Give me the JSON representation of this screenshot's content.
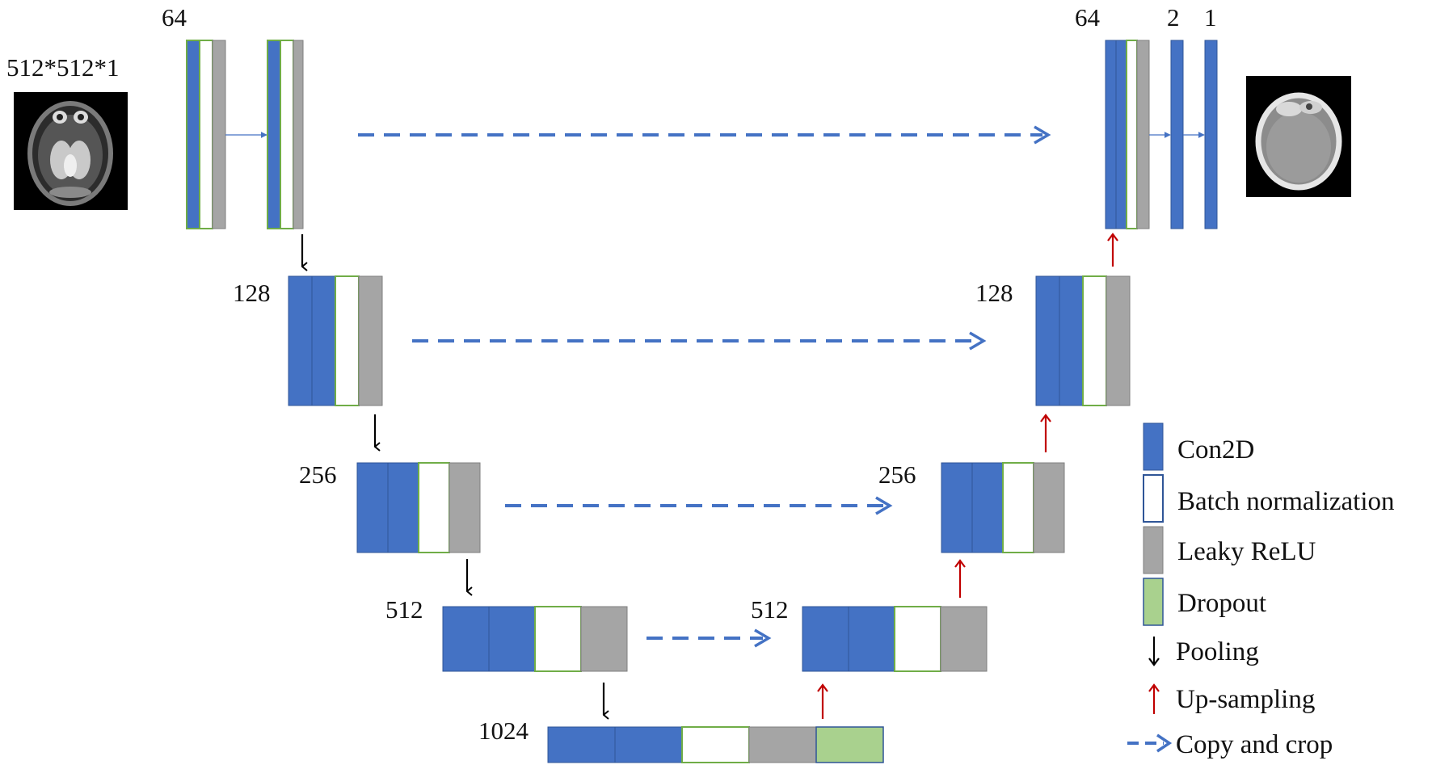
{
  "input": {
    "label": "512*512*1",
    "image": "brain-mri-slice"
  },
  "output": {
    "image": "brain-ct-slice"
  },
  "channel_labels": {
    "enc64": "64",
    "enc128": "128",
    "enc256": "256",
    "enc512": "512",
    "bottleneck": "1024",
    "dec512": "512",
    "dec256": "256",
    "dec128": "128",
    "dec64": "64",
    "final2": "2",
    "final1": "1"
  },
  "legend": {
    "items": [
      {
        "key": "con2d",
        "label": "Con2D",
        "color": "#4472c4"
      },
      {
        "key": "bn",
        "label": "Batch normalization",
        "color": "#ffffff"
      },
      {
        "key": "lrelu",
        "label": "Leaky ReLU",
        "color": "#a5a5a5"
      },
      {
        "key": "dropout",
        "label": "Dropout",
        "color": "#a9d18e"
      }
    ],
    "arrows": [
      {
        "key": "pooling",
        "label": "Pooling",
        "color": "#000000"
      },
      {
        "key": "upsampling",
        "label": "Up-sampling",
        "color": "#c00000"
      },
      {
        "key": "copy",
        "label": "Copy and crop",
        "color": "#4472c4"
      }
    ]
  },
  "colors": {
    "conv": "#4472c4",
    "batchnorm": "#ffffff",
    "leaky_relu": "#a5a5a5",
    "dropout": "#a9d18e",
    "border_green": "#70ad47",
    "border_gray": "#7f7f7f",
    "pool_arrow": "#000000",
    "up_arrow": "#c00000",
    "copy_arrow": "#4472c4"
  }
}
